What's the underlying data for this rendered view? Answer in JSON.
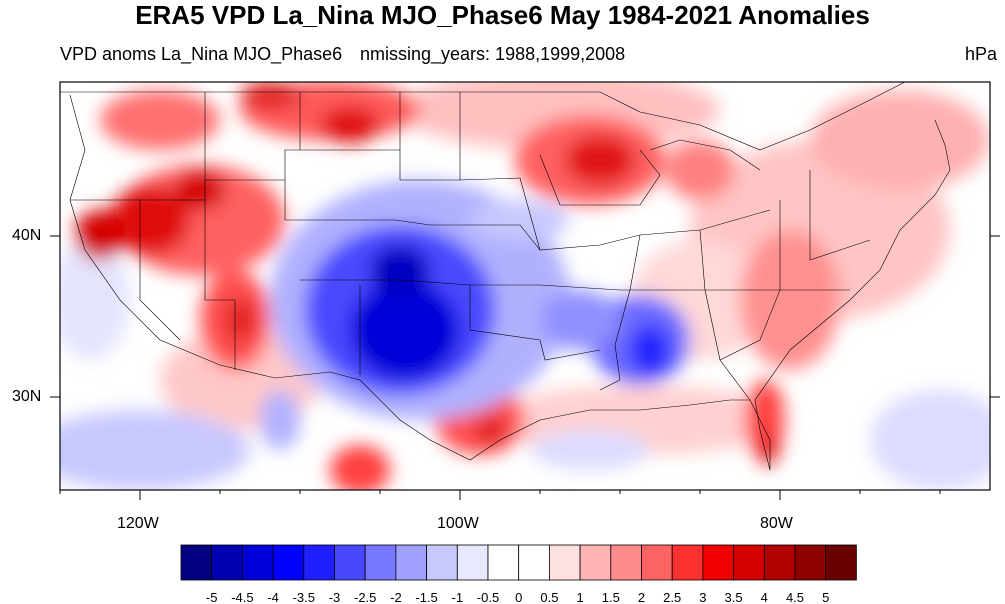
{
  "title": "ERA5 VPD La_Nina MJO_Phase6 May 1984-2021 Anomalies",
  "subtitle_left": "VPD anoms La_Nina MJO_Phase6",
  "subtitle_mid": "nmissing_years: 1988,1999,2008",
  "units": "hPa",
  "lat_labels": [
    "40N",
    "30N"
  ],
  "lon_labels": [
    "120W",
    "100W",
    "80W"
  ],
  "colorbar": {
    "labels": [
      "-5",
      "-4.5",
      "-4",
      "-3.5",
      "-3",
      "-2.5",
      "-2",
      "-1.5",
      "-1",
      "-0.5",
      "0",
      "0.5",
      "1",
      "1.5",
      "2",
      "2.5",
      "3",
      "3.5",
      "4",
      "4.5",
      "5"
    ],
    "colors": [
      "#000080",
      "#0000b0",
      "#0000d8",
      "#0000ff",
      "#2020ff",
      "#4848ff",
      "#7777ff",
      "#a0a0ff",
      "#c8c8ff",
      "#e8e8ff",
      "#ffffff",
      "#ffffff",
      "#ffe0e0",
      "#ffb4b4",
      "#ff8c8c",
      "#ff6464",
      "#ff3030",
      "#f00000",
      "#d40000",
      "#b00000",
      "#8c0000",
      "#680000"
    ]
  }
}
